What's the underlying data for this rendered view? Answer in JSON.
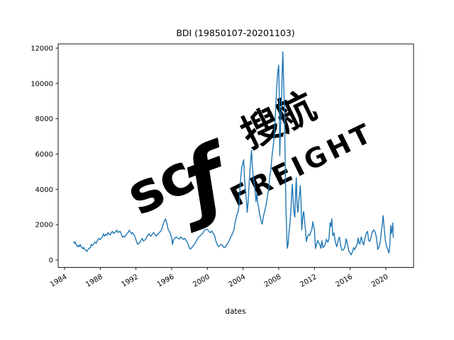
{
  "figure": {
    "title": "BDI (19850107-20201103)",
    "xlabel": "dates",
    "watermark": {
      "letters": "sc",
      "swoosh_glyph": "ƒ",
      "brand": "FREIGHT",
      "cjk": "搜航",
      "color_light": "#e9f1f9",
      "color_swoosh": "#dcebf7"
    }
  },
  "chart_data": {
    "type": "line",
    "title": "BDI (19850107-20201103)",
    "xlabel": "dates",
    "ylabel": "",
    "grid": false,
    "legend": null,
    "line_color": "#1f77b4",
    "x_tick_years": [
      1984,
      1988,
      1992,
      1996,
      2000,
      2004,
      2008,
      2012,
      2016,
      2020
    ],
    "y_ticks": [
      0,
      2000,
      4000,
      6000,
      8000,
      10000,
      12000
    ],
    "xlim_years": [
      1983.2,
      2023.1
    ],
    "ylim": [
      -400,
      12240
    ],
    "series": [
      {
        "name": "BDI",
        "points": [
          [
            1985.02,
            1000
          ],
          [
            1985.1,
            960
          ],
          [
            1985.18,
            1030
          ],
          [
            1985.27,
            900
          ],
          [
            1985.37,
            830
          ],
          [
            1985.47,
            760
          ],
          [
            1985.56,
            820
          ],
          [
            1985.65,
            750
          ],
          [
            1985.75,
            880
          ],
          [
            1985.85,
            760
          ],
          [
            1985.95,
            700
          ],
          [
            1986.05,
            640
          ],
          [
            1986.15,
            720
          ],
          [
            1986.25,
            600
          ],
          [
            1986.37,
            560
          ],
          [
            1986.5,
            480
          ],
          [
            1986.62,
            590
          ],
          [
            1986.75,
            650
          ],
          [
            1986.87,
            700
          ],
          [
            1987.0,
            880
          ],
          [
            1987.12,
            820
          ],
          [
            1987.25,
            900
          ],
          [
            1987.4,
            1015
          ],
          [
            1987.55,
            950
          ],
          [
            1987.7,
            1120
          ],
          [
            1987.85,
            1215
          ],
          [
            1988.0,
            1150
          ],
          [
            1988.12,
            1250
          ],
          [
            1988.25,
            1310
          ],
          [
            1988.37,
            1485
          ],
          [
            1988.5,
            1350
          ],
          [
            1988.62,
            1450
          ],
          [
            1988.75,
            1400
          ],
          [
            1988.87,
            1550
          ],
          [
            1989.0,
            1460
          ],
          [
            1989.12,
            1415
          ],
          [
            1989.25,
            1560
          ],
          [
            1989.37,
            1615
          ],
          [
            1989.5,
            1500
          ],
          [
            1989.62,
            1550
          ],
          [
            1989.75,
            1620
          ],
          [
            1989.87,
            1685
          ],
          [
            1990.0,
            1550
          ],
          [
            1990.12,
            1600
          ],
          [
            1990.25,
            1615
          ],
          [
            1990.37,
            1450
          ],
          [
            1990.5,
            1285
          ],
          [
            1990.62,
            1350
          ],
          [
            1990.75,
            1300
          ],
          [
            1990.87,
            1415
          ],
          [
            1991.0,
            1500
          ],
          [
            1991.12,
            1550
          ],
          [
            1991.25,
            1685
          ],
          [
            1991.37,
            1600
          ],
          [
            1991.5,
            1485
          ],
          [
            1991.62,
            1550
          ],
          [
            1991.75,
            1420
          ],
          [
            1991.87,
            1350
          ],
          [
            1992.0,
            1150
          ],
          [
            1992.1,
            1000
          ],
          [
            1992.2,
            880
          ],
          [
            1992.32,
            950
          ],
          [
            1992.45,
            1015
          ],
          [
            1992.57,
            1120
          ],
          [
            1992.7,
            1215
          ],
          [
            1992.82,
            1080
          ],
          [
            1992.95,
            1120
          ],
          [
            1993.07,
            1150
          ],
          [
            1993.2,
            1285
          ],
          [
            1993.32,
            1380
          ],
          [
            1993.45,
            1485
          ],
          [
            1993.57,
            1400
          ],
          [
            1993.7,
            1350
          ],
          [
            1993.85,
            1480
          ],
          [
            1994.0,
            1550
          ],
          [
            1994.12,
            1450
          ],
          [
            1994.25,
            1350
          ],
          [
            1994.37,
            1420
          ],
          [
            1994.5,
            1485
          ],
          [
            1994.62,
            1550
          ],
          [
            1994.75,
            1620
          ],
          [
            1994.87,
            1685
          ],
          [
            1995.0,
            1950
          ],
          [
            1995.15,
            2150
          ],
          [
            1995.3,
            2330
          ],
          [
            1995.42,
            2150
          ],
          [
            1995.5,
            2000
          ],
          [
            1995.6,
            1750
          ],
          [
            1995.75,
            1600
          ],
          [
            1995.87,
            1485
          ],
          [
            1996.0,
            1250
          ],
          [
            1996.1,
            880
          ],
          [
            1996.22,
            1160
          ],
          [
            1996.35,
            1220
          ],
          [
            1996.5,
            1300
          ],
          [
            1996.62,
            1250
          ],
          [
            1996.75,
            1220
          ],
          [
            1996.87,
            1180
          ],
          [
            1997.0,
            1300
          ],
          [
            1997.15,
            1240
          ],
          [
            1997.3,
            1160
          ],
          [
            1997.45,
            1220
          ],
          [
            1997.6,
            1130
          ],
          [
            1997.8,
            950
          ],
          [
            1998.0,
            680
          ],
          [
            1998.1,
            615
          ],
          [
            1998.25,
            700
          ],
          [
            1998.4,
            790
          ],
          [
            1998.55,
            880
          ],
          [
            1998.7,
            1000
          ],
          [
            1998.85,
            1160
          ],
          [
            1999.0,
            1280
          ],
          [
            1999.15,
            1350
          ],
          [
            1999.3,
            1430
          ],
          [
            1999.45,
            1480
          ],
          [
            1999.6,
            1615
          ],
          [
            1999.75,
            1700
          ],
          [
            1999.9,
            1750
          ],
          [
            2000.05,
            1700
          ],
          [
            2000.2,
            1600
          ],
          [
            2000.35,
            1550
          ],
          [
            2000.5,
            1650
          ],
          [
            2000.65,
            1500
          ],
          [
            2000.8,
            1415
          ],
          [
            2000.95,
            1100
          ],
          [
            2001.1,
            880
          ],
          [
            2001.25,
            750
          ],
          [
            2001.4,
            820
          ],
          [
            2001.55,
            880
          ],
          [
            2001.7,
            820
          ],
          [
            2001.85,
            700
          ],
          [
            2002.0,
            720
          ],
          [
            2002.15,
            850
          ],
          [
            2002.3,
            950
          ],
          [
            2002.45,
            1100
          ],
          [
            2002.6,
            1300
          ],
          [
            2002.75,
            1415
          ],
          [
            2002.9,
            1600
          ],
          [
            2003.0,
            1750
          ],
          [
            2003.1,
            2100
          ],
          [
            2003.22,
            2355
          ],
          [
            2003.35,
            2600
          ],
          [
            2003.47,
            2760
          ],
          [
            2003.57,
            3200
          ],
          [
            2003.67,
            4100
          ],
          [
            2003.77,
            4800
          ],
          [
            2003.87,
            5300
          ],
          [
            2003.97,
            5450
          ],
          [
            2004.07,
            5681
          ],
          [
            2004.17,
            4600
          ],
          [
            2004.27,
            3900
          ],
          [
            2004.37,
            3400
          ],
          [
            2004.47,
            2700
          ],
          [
            2004.57,
            3300
          ],
          [
            2004.67,
            4200
          ],
          [
            2004.77,
            5000
          ],
          [
            2004.87,
            5700
          ],
          [
            2004.95,
            6208
          ],
          [
            2005.05,
            5300
          ],
          [
            2005.15,
            4600
          ],
          [
            2005.25,
            4370
          ],
          [
            2005.35,
            3900
          ],
          [
            2005.45,
            3300
          ],
          [
            2005.55,
            3770
          ],
          [
            2005.65,
            3200
          ],
          [
            2005.75,
            2970
          ],
          [
            2005.85,
            2600
          ],
          [
            2005.95,
            2410
          ],
          [
            2006.05,
            2165
          ],
          [
            2006.15,
            2030
          ],
          [
            2006.27,
            2450
          ],
          [
            2006.4,
            2700
          ],
          [
            2006.52,
            2970
          ],
          [
            2006.65,
            3300
          ],
          [
            2006.77,
            3700
          ],
          [
            2006.9,
            4100
          ],
          [
            2007.0,
            4765
          ],
          [
            2007.12,
            5100
          ],
          [
            2007.25,
            5900
          ],
          [
            2007.37,
            6400
          ],
          [
            2007.5,
            7000
          ],
          [
            2007.6,
            7900
          ],
          [
            2007.7,
            9000
          ],
          [
            2007.8,
            10000
          ],
          [
            2007.9,
            10700
          ],
          [
            2008.0,
            11030
          ],
          [
            2008.06,
            9200
          ],
          [
            2008.12,
            5900
          ],
          [
            2008.2,
            7400
          ],
          [
            2008.3,
            8800
          ],
          [
            2008.38,
            10500
          ],
          [
            2008.45,
            11793
          ],
          [
            2008.55,
            10200
          ],
          [
            2008.63,
            8700
          ],
          [
            2008.72,
            5600
          ],
          [
            2008.82,
            2800
          ],
          [
            2008.95,
            663
          ],
          [
            2009.05,
            870
          ],
          [
            2009.15,
            1600
          ],
          [
            2009.25,
            2000
          ],
          [
            2009.35,
            2700
          ],
          [
            2009.45,
            3800
          ],
          [
            2009.53,
            4291
          ],
          [
            2009.62,
            3300
          ],
          [
            2009.7,
            2750
          ],
          [
            2009.8,
            2420
          ],
          [
            2009.9,
            3900
          ],
          [
            2009.97,
            4661
          ],
          [
            2010.05,
            3140
          ],
          [
            2010.15,
            2700
          ],
          [
            2010.25,
            3400
          ],
          [
            2010.35,
            3800
          ],
          [
            2010.42,
            4209
          ],
          [
            2010.5,
            3200
          ],
          [
            2010.58,
            1700
          ],
          [
            2010.7,
            2470
          ],
          [
            2010.8,
            2750
          ],
          [
            2010.9,
            2200
          ],
          [
            2011.0,
            1700
          ],
          [
            2011.1,
            1045
          ],
          [
            2011.22,
            1300
          ],
          [
            2011.35,
            1450
          ],
          [
            2011.47,
            1400
          ],
          [
            2011.6,
            1600
          ],
          [
            2011.7,
            1700
          ],
          [
            2011.82,
            2173
          ],
          [
            2011.92,
            1900
          ],
          [
            2012.0,
            1750
          ],
          [
            2012.12,
            647
          ],
          [
            2012.25,
            900
          ],
          [
            2012.37,
            1100
          ],
          [
            2012.5,
            950
          ],
          [
            2012.6,
            870
          ],
          [
            2012.72,
            661
          ],
          [
            2012.85,
            1090
          ],
          [
            2012.95,
            700
          ],
          [
            2013.07,
            750
          ],
          [
            2013.2,
            900
          ],
          [
            2013.35,
            1170
          ],
          [
            2013.5,
            1000
          ],
          [
            2013.62,
            1150
          ],
          [
            2013.75,
            2100
          ],
          [
            2013.85,
            1900
          ],
          [
            2013.95,
            2330
          ],
          [
            2014.05,
            1370
          ],
          [
            2014.2,
            1540
          ],
          [
            2014.35,
            1000
          ],
          [
            2014.5,
            750
          ],
          [
            2014.65,
            1100
          ],
          [
            2014.8,
            1300
          ],
          [
            2014.95,
            780
          ],
          [
            2015.1,
            540
          ],
          [
            2015.25,
            590
          ],
          [
            2015.4,
            700
          ],
          [
            2015.55,
            1200
          ],
          [
            2015.7,
            900
          ],
          [
            2015.85,
            500
          ],
          [
            2016.0,
            400
          ],
          [
            2016.1,
            290
          ],
          [
            2016.25,
            450
          ],
          [
            2016.4,
            700
          ],
          [
            2016.52,
            580
          ],
          [
            2016.65,
            750
          ],
          [
            2016.8,
            900
          ],
          [
            2016.9,
            1250
          ],
          [
            2017.0,
            960
          ],
          [
            2017.1,
            910
          ],
          [
            2017.25,
            1300
          ],
          [
            2017.4,
            1000
          ],
          [
            2017.52,
            850
          ],
          [
            2017.65,
            1200
          ],
          [
            2017.8,
            1500
          ],
          [
            2017.95,
            1620
          ],
          [
            2018.07,
            1125
          ],
          [
            2018.2,
            1050
          ],
          [
            2018.35,
            1300
          ],
          [
            2018.5,
            1600
          ],
          [
            2018.65,
            1700
          ],
          [
            2018.8,
            1580
          ],
          [
            2018.95,
            1270
          ],
          [
            2019.1,
            595
          ],
          [
            2019.25,
            740
          ],
          [
            2019.4,
            1100
          ],
          [
            2019.55,
            1800
          ],
          [
            2019.7,
            2518
          ],
          [
            2019.82,
            1800
          ],
          [
            2019.95,
            1090
          ],
          [
            2020.1,
            760
          ],
          [
            2020.22,
            600
          ],
          [
            2020.35,
            393
          ],
          [
            2020.45,
            850
          ],
          [
            2020.55,
            1956
          ],
          [
            2020.63,
            1500
          ],
          [
            2020.7,
            1700
          ],
          [
            2020.78,
            2097
          ],
          [
            2020.84,
            1283
          ]
        ]
      }
    ]
  }
}
